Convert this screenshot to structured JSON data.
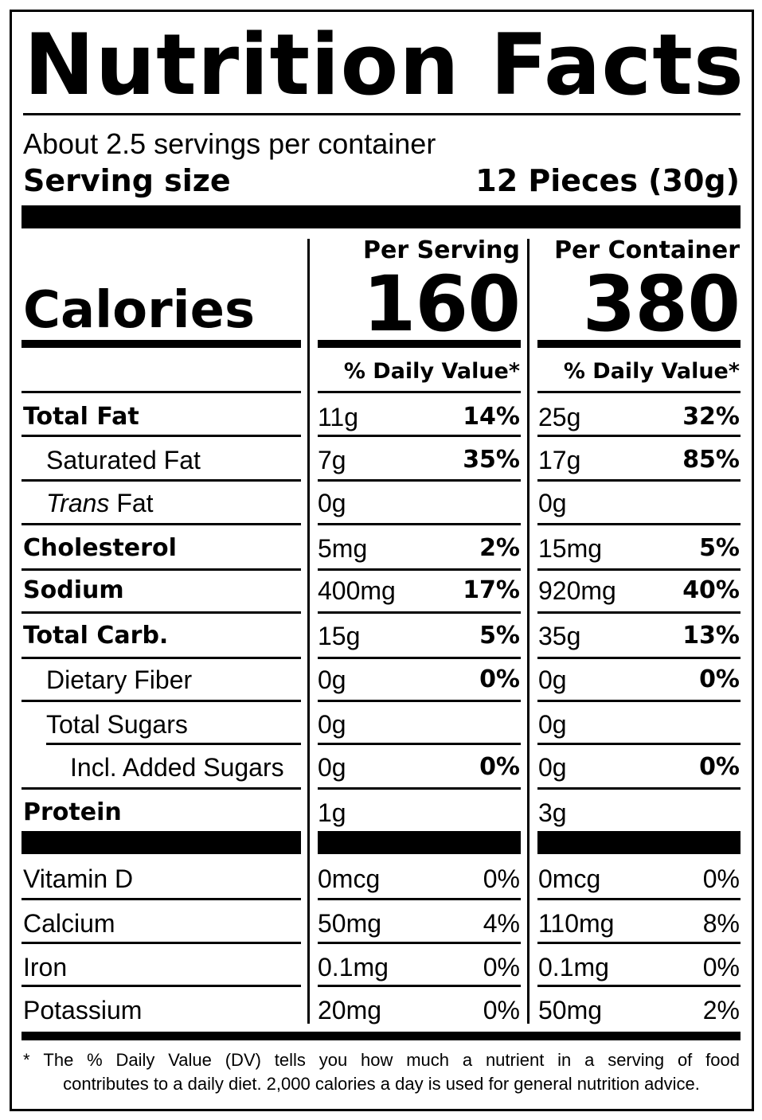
{
  "title": "Nutrition Facts",
  "servings_per_container": "About 2.5 servings per container",
  "serving_size_label": "Serving size",
  "serving_size_value": "12 Pieces (30g)",
  "calories_label": "Calories",
  "columns": {
    "per_serving_label": "Per Serving",
    "per_container_label": "Per Container",
    "per_serving_calories": "160",
    "per_container_calories": "380",
    "daily_value_label": "% Daily Value*"
  },
  "nutrients": [
    {
      "name": "Total Fat",
      "style": "bold",
      "serving_amount": "11g",
      "serving_dv": "14%",
      "container_amount": "25g",
      "container_dv": "32%"
    },
    {
      "name": "Saturated Fat",
      "style": "indent1",
      "serving_amount": "7g",
      "serving_dv": "35%",
      "container_amount": "17g",
      "container_dv": "85%"
    },
    {
      "name_italic": "Trans",
      "name": " Fat",
      "style": "indent1",
      "serving_amount": "0g",
      "serving_dv": "",
      "container_amount": "0g",
      "container_dv": ""
    },
    {
      "name": "Cholesterol",
      "style": "bold",
      "serving_amount": "5mg",
      "serving_dv": "2%",
      "container_amount": "15mg",
      "container_dv": "5%"
    },
    {
      "name": "Sodium",
      "style": "bold",
      "serving_amount": "400mg",
      "serving_dv": "17%",
      "container_amount": "920mg",
      "container_dv": "40%"
    },
    {
      "name": "Total Carb.",
      "style": "bold",
      "serving_amount": "15g",
      "serving_dv": "5%",
      "container_amount": "35g",
      "container_dv": "13%"
    },
    {
      "name": "Dietary Fiber",
      "style": "indent1",
      "serving_amount": "0g",
      "serving_dv": "0%",
      "container_amount": "0g",
      "container_dv": "0%"
    },
    {
      "name": "Total Sugars",
      "style": "indent1",
      "serving_amount": "0g",
      "serving_dv": "",
      "container_amount": "0g",
      "container_dv": ""
    },
    {
      "name": "Incl. Added Sugars",
      "style": "indent2",
      "serving_amount": "0g",
      "serving_dv": "0%",
      "container_amount": "0g",
      "container_dv": "0%"
    },
    {
      "name": "Protein",
      "style": "bold",
      "serving_amount": "1g",
      "serving_dv": "",
      "container_amount": "3g",
      "container_dv": ""
    }
  ],
  "vitamins": [
    {
      "name": "Vitamin D",
      "serving_amount": "0mcg",
      "serving_dv": "0%",
      "container_amount": "0mcg",
      "container_dv": "0%"
    },
    {
      "name": "Calcium",
      "serving_amount": "50mg",
      "serving_dv": "4%",
      "container_amount": "110mg",
      "container_dv": "8%"
    },
    {
      "name": "Iron",
      "serving_amount": "0.1mg",
      "serving_dv": "0%",
      "container_amount": "0.1mg",
      "container_dv": "0%"
    },
    {
      "name": "Potassium",
      "serving_amount": "20mg",
      "serving_dv": "0%",
      "container_amount": "50mg",
      "container_dv": "2%"
    }
  ],
  "footnote": {
    "line1_words": [
      "*",
      "The",
      "%",
      "Daily",
      "Value",
      "(DV)",
      "tells",
      "you",
      "how",
      "much",
      "a",
      "nutrient",
      "in",
      "a",
      "serving",
      "of",
      "food"
    ],
    "line2": "contributes to a daily diet. 2,000 calories a day is used for general nutrition advice."
  }
}
